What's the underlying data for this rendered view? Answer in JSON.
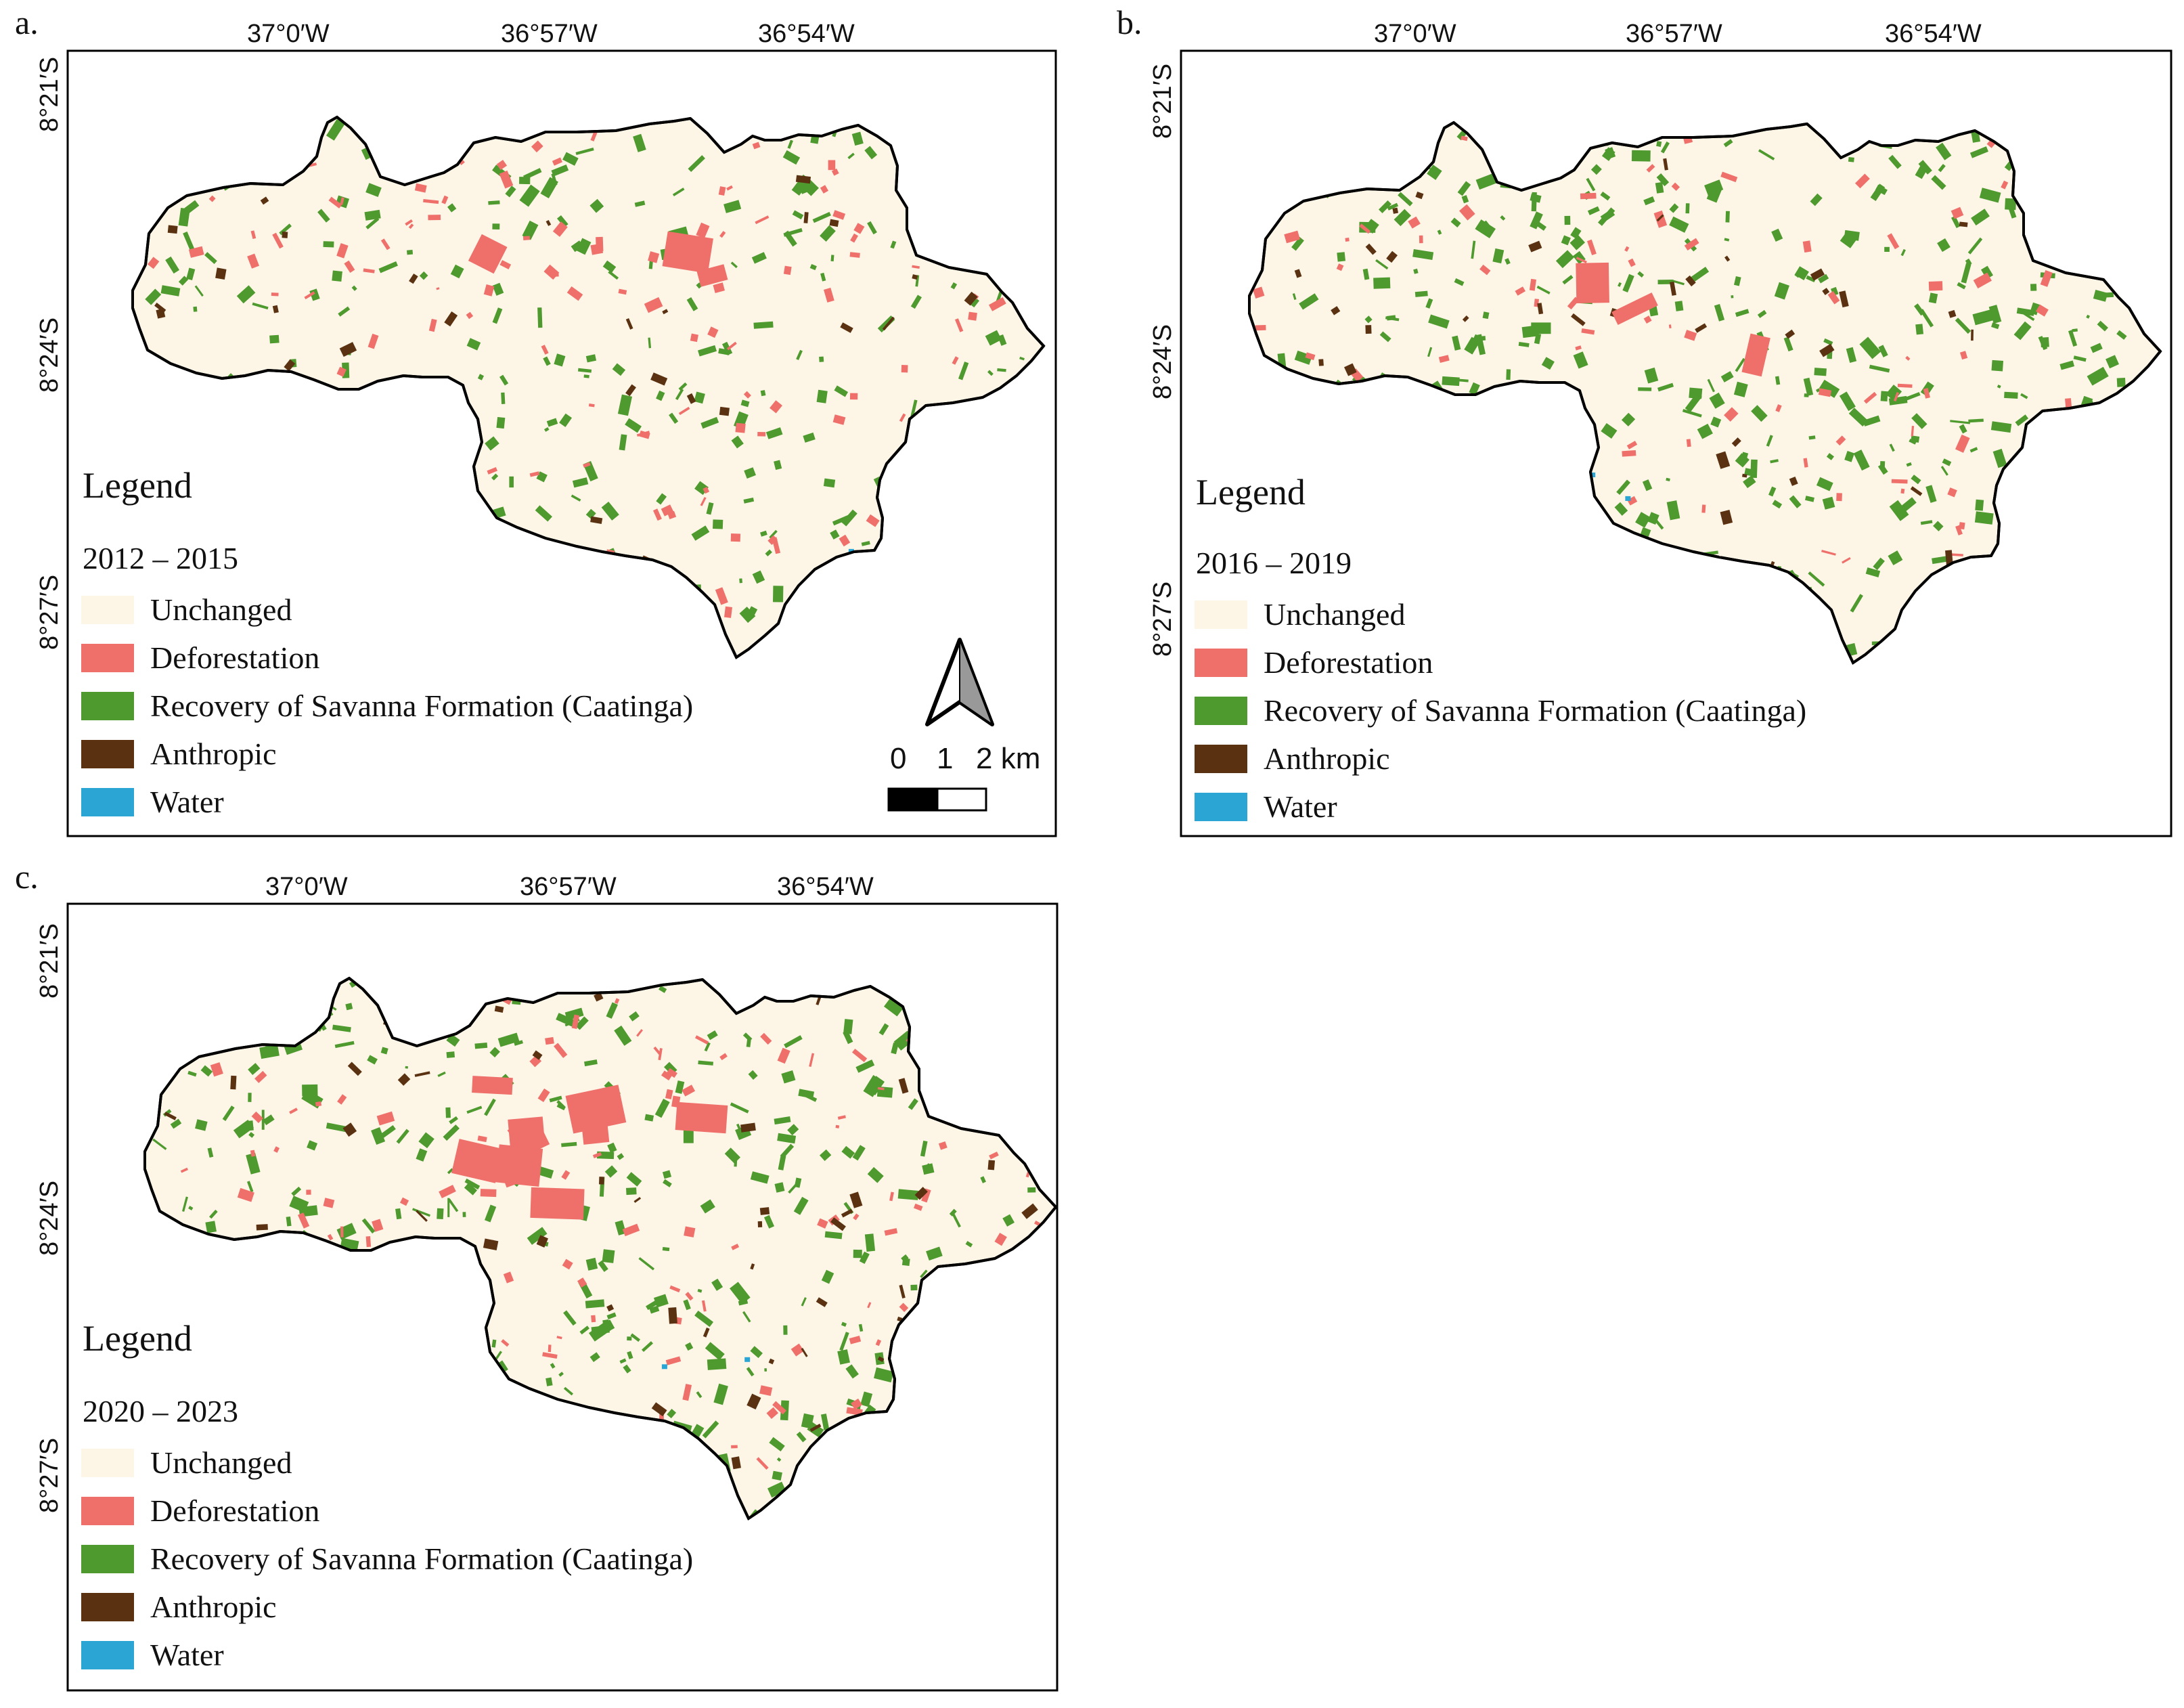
{
  "colors": {
    "unchanged": "#fdf5e6",
    "deforestation": "#ef6f6a",
    "recovery": "#4e9a2e",
    "anthropic": "#5a3211",
    "water": "#2aa5d4"
  },
  "panels": [
    {
      "letter": "a.",
      "lon_labels": [
        "37°0′W",
        "36°57′W",
        "36°54′W"
      ],
      "lat_labels": [
        "8°21′S",
        "8°24′S",
        "8°27′S"
      ],
      "legend": {
        "title": "Legend",
        "period": "2012 – 2015",
        "items": [
          {
            "label": "Unchanged",
            "color": "#fdf5e6"
          },
          {
            "label": "Deforestation",
            "color": "#ef6f6a"
          },
          {
            "label": "Recovery of Savanna Formation (Caatinga)",
            "color": "#4e9a2e"
          },
          {
            "label": "Anthropic",
            "color": "#5a3211"
          },
          {
            "label": "Water",
            "color": "#2aa5d4"
          }
        ]
      },
      "scale_bar": {
        "labels": [
          "0",
          "1",
          "2 km"
        ]
      },
      "north_arrow": "north-arrow-icon",
      "density": {
        "recovery": 0.06,
        "deforestation": 0.035,
        "anthropic": 0.01
      }
    },
    {
      "letter": "b.",
      "lon_labels": [
        "37°0′W",
        "36°57′W",
        "36°54′W"
      ],
      "lat_labels": [
        "8°21′S",
        "8°24′S",
        "8°27′S"
      ],
      "legend": {
        "title": "Legend",
        "period": "2016 – 2019",
        "items": [
          {
            "label": "Unchanged",
            "color": "#fdf5e6"
          },
          {
            "label": "Deforestation",
            "color": "#ef6f6a"
          },
          {
            "label": "Recovery of Savanna Formation (Caatinga)",
            "color": "#4e9a2e"
          },
          {
            "label": "Anthropic",
            "color": "#5a3211"
          },
          {
            "label": "Water",
            "color": "#2aa5d4"
          }
        ]
      },
      "density": {
        "recovery": 0.1,
        "deforestation": 0.025,
        "anthropic": 0.012
      }
    },
    {
      "letter": "c.",
      "lon_labels": [
        "37°0′W",
        "36°57′W",
        "36°54′W"
      ],
      "lat_labels": [
        "8°21′S",
        "8°24′S",
        "8°27′S"
      ],
      "legend": {
        "title": "Legend",
        "period": "2020 – 2023",
        "items": [
          {
            "label": "Unchanged",
            "color": "#fdf5e6"
          },
          {
            "label": "Deforestation",
            "color": "#ef6f6a"
          },
          {
            "label": "Recovery of Savanna Formation (Caatinga)",
            "color": "#4e9a2e"
          },
          {
            "label": "Anthropic",
            "color": "#5a3211"
          },
          {
            "label": "Water",
            "color": "#2aa5d4"
          }
        ]
      },
      "density": {
        "recovery": 0.09,
        "deforestation": 0.03,
        "anthropic": 0.014
      }
    }
  ]
}
